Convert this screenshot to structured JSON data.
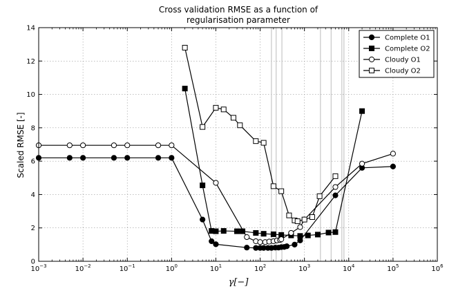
{
  "chart_data": {
    "type": "line",
    "title": "Cross validation RMSE as a function of",
    "title_line2": "regularisation parameter",
    "xlabel": "γ[−]",
    "ylabel": "Scaled RMSE [-]",
    "xscale": "log",
    "xlim": [
      0.001,
      1000000
    ],
    "ylim": [
      0,
      14
    ],
    "xticks": [
      {
        "value": 0.001,
        "base": "10",
        "exp": "−3"
      },
      {
        "value": 0.01,
        "base": "10",
        "exp": "−2"
      },
      {
        "value": 0.1,
        "base": "10",
        "exp": "−1"
      },
      {
        "value": 1,
        "base": "10",
        "exp": "0"
      },
      {
        "value": 10,
        "base": "10",
        "exp": "1"
      },
      {
        "value": 100,
        "base": "10",
        "exp": "2"
      },
      {
        "value": 1000,
        "base": "10",
        "exp": "3"
      },
      {
        "value": 10000,
        "base": "10",
        "exp": "4"
      },
      {
        "value": 100000,
        "base": "10",
        "exp": "5"
      },
      {
        "value": 1000000,
        "base": "10",
        "exp": "6"
      }
    ],
    "yticks": [
      0,
      2,
      4,
      6,
      8,
      10,
      12,
      14
    ],
    "grid": true,
    "legend_position": "top-right",
    "vertical_lines_x": [
      180,
      230,
      310,
      2300,
      4000,
      7000,
      7800
    ],
    "series": [
      {
        "name": "Complete O1",
        "marker": "circle",
        "fill": "#000000",
        "x": [
          0.001,
          0.005,
          0.01,
          0.05,
          0.1,
          0.5,
          1,
          5,
          8,
          10,
          50,
          80,
          100,
          120,
          150,
          180,
          220,
          260,
          300,
          350,
          400,
          600,
          800,
          5000,
          20000,
          100000
        ],
        "y": [
          6.2,
          6.2,
          6.2,
          6.2,
          6.2,
          6.2,
          6.2,
          2.5,
          1.2,
          1.02,
          0.82,
          0.8,
          0.8,
          0.8,
          0.8,
          0.8,
          0.82,
          0.82,
          0.85,
          0.86,
          0.9,
          1.0,
          1.25,
          3.95,
          5.6,
          5.68
        ]
      },
      {
        "name": "Complete O2",
        "marker": "square",
        "fill": "#000000",
        "x": [
          2,
          5,
          8,
          10,
          15,
          30,
          40,
          80,
          120,
          200,
          300,
          500,
          800,
          1200,
          2000,
          3500,
          5000,
          20000
        ],
        "y": [
          10.35,
          4.55,
          1.82,
          1.8,
          1.82,
          1.8,
          1.8,
          1.7,
          1.65,
          1.62,
          1.58,
          1.55,
          1.52,
          1.55,
          1.6,
          1.72,
          1.75,
          9.0
        ]
      },
      {
        "name": "Cloudy O1",
        "marker": "circle",
        "fill": "#ffffff",
        "x": [
          0.001,
          0.005,
          0.01,
          0.05,
          0.1,
          0.5,
          1,
          10,
          50,
          80,
          100,
          130,
          160,
          200,
          240,
          280,
          300,
          500,
          800,
          1000,
          5000,
          20000,
          100000
        ],
        "y": [
          6.95,
          6.95,
          6.95,
          6.95,
          6.95,
          6.95,
          6.95,
          4.7,
          1.45,
          1.2,
          1.15,
          1.15,
          1.18,
          1.2,
          1.25,
          1.28,
          1.32,
          1.7,
          2.05,
          2.5,
          4.45,
          5.85,
          6.45
        ]
      },
      {
        "name": "Cloudy O2",
        "marker": "square",
        "fill": "#ffffff",
        "x": [
          2,
          5,
          10,
          15,
          25,
          35,
          80,
          120,
          200,
          300,
          450,
          600,
          700,
          1000,
          1500,
          2200,
          5000
        ],
        "y": [
          12.8,
          8.05,
          9.2,
          9.1,
          8.6,
          8.15,
          7.2,
          7.1,
          4.5,
          4.2,
          2.75,
          2.45,
          2.4,
          2.5,
          2.65,
          3.9,
          5.1
        ]
      }
    ]
  }
}
